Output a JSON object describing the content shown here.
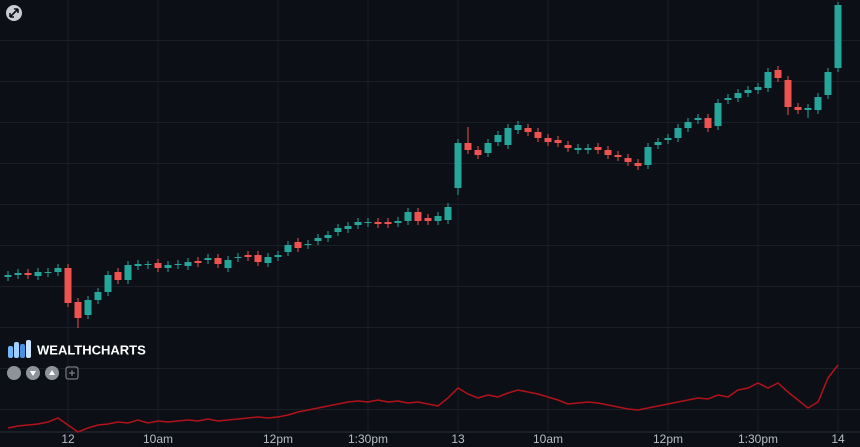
{
  "chart_data": [
    {
      "type": "candlestick",
      "brand": "WEALTHCHARTS",
      "up_color": "#26a69a",
      "down_color": "#ef5350",
      "categories": [
        null,
        null,
        null,
        null,
        null,
        null,
        "12",
        null,
        null,
        null,
        null,
        null,
        null,
        null,
        null,
        "10am",
        null,
        null,
        null,
        null,
        null,
        null,
        null,
        null,
        null,
        null,
        null,
        "12pm",
        null,
        null,
        null,
        null,
        null,
        null,
        null,
        null,
        "1:30pm",
        null,
        null,
        null,
        null,
        null,
        null,
        null,
        null,
        "13",
        null,
        null,
        null,
        null,
        null,
        null,
        null,
        null,
        "10am",
        null,
        null,
        null,
        null,
        null,
        null,
        null,
        null,
        null,
        null,
        null,
        "12pm",
        null,
        null,
        null,
        null,
        null,
        null,
        null,
        null,
        "1:30pm",
        null,
        null,
        null,
        null,
        null,
        null,
        null,
        "14"
      ],
      "ylim": [
        0,
        400
      ],
      "open": [
        123,
        125,
        127,
        124,
        127,
        128,
        132,
        98,
        85,
        100,
        108,
        128,
        120,
        134,
        135,
        137,
        132,
        135,
        134,
        139,
        140,
        142,
        132,
        142,
        145,
        145,
        137,
        143,
        148,
        158,
        155,
        159,
        162,
        168,
        171,
        175,
        177,
        178,
        178,
        177,
        179,
        188,
        182,
        179,
        180,
        212,
        257,
        250,
        247,
        258,
        255,
        270,
        272,
        268,
        262,
        260,
        255,
        250,
        250,
        253,
        250,
        245,
        242,
        237,
        235,
        255,
        260,
        262,
        272,
        280,
        282,
        274,
        300,
        302,
        307,
        310,
        312,
        330,
        320,
        293,
        290,
        290,
        305,
        332
      ],
      "high": [
        129,
        131,
        131,
        132,
        132,
        136,
        136,
        102,
        104,
        112,
        129,
        132,
        139,
        140,
        139,
        141,
        139,
        140,
        142,
        143,
        146,
        146,
        144,
        147,
        149,
        149,
        147,
        149,
        159,
        162,
        160,
        166,
        169,
        176,
        178,
        182,
        182,
        182,
        182,
        183,
        192,
        192,
        186,
        188,
        197,
        261,
        273,
        254,
        261,
        269,
        276,
        279,
        276,
        272,
        266,
        264,
        259,
        256,
        256,
        257,
        254,
        249,
        246,
        241,
        257,
        262,
        266,
        276,
        282,
        286,
        286,
        301,
        306,
        311,
        314,
        317,
        332,
        334,
        324,
        297,
        296,
        307,
        332,
        398
      ],
      "low": [
        119,
        121,
        121,
        120,
        123,
        124,
        93,
        72,
        81,
        96,
        104,
        116,
        116,
        130,
        131,
        128,
        128,
        131,
        130,
        133,
        136,
        132,
        128,
        138,
        139,
        134,
        133,
        139,
        144,
        148,
        151,
        155,
        158,
        164,
        167,
        171,
        173,
        172,
        172,
        173,
        175,
        175,
        175,
        175,
        176,
        205,
        246,
        241,
        243,
        254,
        251,
        266,
        264,
        258,
        254,
        253,
        248,
        246,
        246,
        246,
        241,
        239,
        234,
        230,
        231,
        251,
        256,
        258,
        268,
        276,
        268,
        270,
        296,
        298,
        303,
        306,
        308,
        318,
        285,
        286,
        282,
        286,
        301,
        328
      ],
      "close": [
        125,
        127,
        125,
        128,
        128,
        132,
        97,
        82,
        100,
        108,
        125,
        120,
        135,
        136,
        136,
        132,
        135,
        136,
        138,
        137,
        142,
        136,
        140,
        143,
        143,
        138,
        143,
        145,
        155,
        152,
        156,
        162,
        165,
        172,
        174,
        178,
        178,
        176,
        176,
        179,
        188,
        179,
        179,
        184,
        193,
        257,
        250,
        245,
        257,
        265,
        272,
        275,
        268,
        262,
        258,
        257,
        252,
        252,
        252,
        250,
        245,
        243,
        238,
        234,
        253,
        258,
        262,
        272,
        278,
        282,
        272,
        297,
        302,
        307,
        310,
        313,
        328,
        322,
        293,
        290,
        292,
        303,
        328,
        395
      ]
    },
    {
      "type": "line",
      "ylim": [
        0,
        100
      ],
      "series": [
        {
          "color": "#b3121a",
          "values": [
            12,
            14,
            15,
            16,
            18,
            22,
            15,
            8,
            12,
            15,
            16,
            18,
            17,
            20,
            17,
            19,
            18,
            19,
            20,
            19,
            21,
            19,
            20,
            21,
            22,
            23,
            22,
            23,
            25,
            28,
            30,
            32,
            34,
            36,
            38,
            39,
            38,
            40,
            38,
            39,
            37,
            38,
            36,
            34,
            42,
            52,
            46,
            42,
            45,
            43,
            47,
            50,
            48,
            46,
            43,
            40,
            36,
            37,
            38,
            37,
            35,
            33,
            31,
            30,
            32,
            34,
            36,
            38,
            40,
            42,
            41,
            45,
            43,
            50,
            52,
            57,
            52,
            57,
            48,
            40,
            32,
            38,
            62,
            75
          ]
        }
      ]
    }
  ]
}
